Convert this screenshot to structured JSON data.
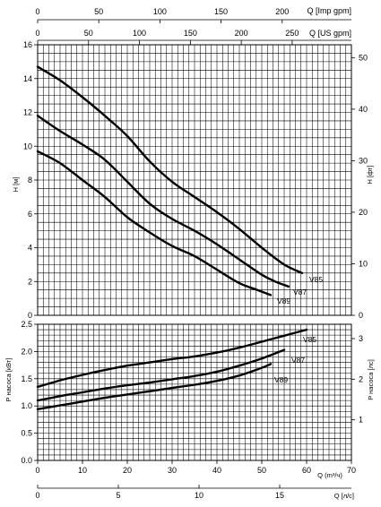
{
  "chart_data": {
    "type": "line",
    "top_axes": [
      {
        "label": "Q [Imp gpm]",
        "ticks": [
          "0",
          "50",
          "100",
          "150",
          "200"
        ]
      },
      {
        "label": "Q [US gpm]",
        "ticks": [
          "0",
          "50",
          "100",
          "150",
          "200",
          "250"
        ]
      }
    ],
    "bottom_axes": [
      {
        "label": "Q (m³/ч)",
        "ticks": [
          "0",
          "10",
          "20",
          "30",
          "40",
          "50",
          "60",
          "70"
        ]
      },
      {
        "label": "Q [л/с]",
        "ticks": [
          "0",
          "5",
          "10",
          "15"
        ]
      }
    ],
    "grid": true,
    "panels": [
      {
        "name": "head",
        "ylabel": "H [м]",
        "ylabel_right": "H [фт]",
        "xlim": [
          0,
          70
        ],
        "ylim": [
          0,
          16
        ],
        "yticks": [
          "0",
          "2",
          "4",
          "6",
          "8",
          "10",
          "12",
          "14",
          "16"
        ],
        "yticks_right": [
          "0",
          "10",
          "20",
          "30",
          "40",
          "50"
        ],
        "series": [
          {
            "name": "V85",
            "x": [
              0,
              5,
              10,
              15,
              20,
              25,
              30,
              35,
              40,
              45,
              50,
              55,
              59
            ],
            "y": [
              14.7,
              13.9,
              12.9,
              11.8,
              10.6,
              9.1,
              7.9,
              7.0,
              6.1,
              5.1,
              4.0,
              3.0,
              2.5
            ]
          },
          {
            "name": "V87",
            "x": [
              0,
              5,
              10,
              15,
              20,
              25,
              30,
              35,
              40,
              45,
              50,
              53,
              56
            ],
            "y": [
              11.8,
              10.9,
              10.1,
              9.2,
              7.9,
              6.6,
              5.7,
              5.0,
              4.2,
              3.3,
              2.4,
              2.0,
              1.7
            ]
          },
          {
            "name": "V89",
            "x": [
              0,
              5,
              10,
              15,
              20,
              25,
              30,
              35,
              40,
              45,
              49,
              52
            ],
            "y": [
              9.7,
              9.0,
              8.0,
              7.0,
              5.8,
              4.9,
              4.1,
              3.5,
              2.7,
              1.9,
              1.5,
              1.2
            ]
          }
        ]
      },
      {
        "name": "power",
        "ylabel": "P насоса [кВт]",
        "ylabel_right": "P насоса [лс]",
        "xlim": [
          0,
          70
        ],
        "ylim": [
          0,
          2.5
        ],
        "yticks": [
          "0.0",
          "0.5",
          "1.0",
          "1.5",
          "2.0",
          "2.5"
        ],
        "yticks_right": [
          "1",
          "2",
          "3"
        ],
        "series": [
          {
            "name": "V85",
            "x": [
              0,
              5,
              10,
              15,
              20,
              25,
              30,
              35,
              40,
              45,
              50,
              55,
              60
            ],
            "y": [
              1.35,
              1.47,
              1.57,
              1.66,
              1.74,
              1.8,
              1.86,
              1.91,
              1.98,
              2.07,
              2.18,
              2.29,
              2.4
            ]
          },
          {
            "name": "V87",
            "x": [
              0,
              5,
              10,
              15,
              20,
              25,
              30,
              35,
              40,
              45,
              50,
              55
            ],
            "y": [
              1.1,
              1.18,
              1.25,
              1.32,
              1.38,
              1.43,
              1.49,
              1.55,
              1.63,
              1.74,
              1.87,
              2.03
            ]
          },
          {
            "name": "V89",
            "x": [
              0,
              5,
              10,
              15,
              20,
              25,
              30,
              35,
              40,
              45,
              50,
              52
            ],
            "y": [
              0.94,
              1.01,
              1.08,
              1.15,
              1.21,
              1.27,
              1.33,
              1.39,
              1.46,
              1.56,
              1.7,
              1.77
            ]
          }
        ]
      }
    ]
  }
}
